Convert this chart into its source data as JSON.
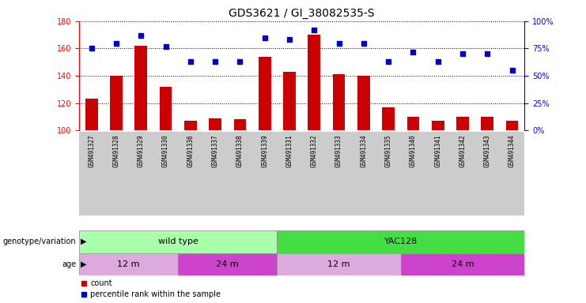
{
  "title": "GDS3621 / GI_38082535-S",
  "samples": [
    "GSM491327",
    "GSM491328",
    "GSM491329",
    "GSM491330",
    "GSM491336",
    "GSM491337",
    "GSM491338",
    "GSM491339",
    "GSM491331",
    "GSM491332",
    "GSM491333",
    "GSM491334",
    "GSM491335",
    "GSM491340",
    "GSM491341",
    "GSM491342",
    "GSM491343",
    "GSM491344"
  ],
  "counts": [
    123,
    140,
    162,
    132,
    107,
    109,
    108,
    154,
    143,
    170,
    141,
    140,
    117,
    110,
    107,
    110,
    110,
    107
  ],
  "percentiles": [
    75,
    80,
    87,
    77,
    63,
    63,
    63,
    85,
    83,
    92,
    80,
    80,
    63,
    72,
    63,
    70,
    70,
    55
  ],
  "ylim_left": [
    100,
    180
  ],
  "ylim_right": [
    0,
    100
  ],
  "yticks_left": [
    100,
    120,
    140,
    160,
    180
  ],
  "yticks_right": [
    0,
    25,
    50,
    75,
    100
  ],
  "bar_color": "#cc0000",
  "dot_color": "#0000cc",
  "bg_color": "#ffffff",
  "genotype_groups": [
    {
      "label": "wild type",
      "start": 0,
      "end": 8,
      "color": "#aaffaa"
    },
    {
      "label": "YAC128",
      "start": 8,
      "end": 18,
      "color": "#44dd44"
    }
  ],
  "age_groups": [
    {
      "label": "12 m",
      "start": 0,
      "end": 4,
      "color": "#ddaadd"
    },
    {
      "label": "24 m",
      "start": 4,
      "end": 8,
      "color": "#cc44cc"
    },
    {
      "label": "12 m",
      "start": 8,
      "end": 13,
      "color": "#ddaadd"
    },
    {
      "label": "24 m",
      "start": 13,
      "end": 18,
      "color": "#cc44cc"
    }
  ],
  "legend_count_label": "count",
  "legend_pct_label": "percentile rank within the sample",
  "title_fontsize": 10,
  "tick_fontsize": 7,
  "bar_width": 0.5
}
